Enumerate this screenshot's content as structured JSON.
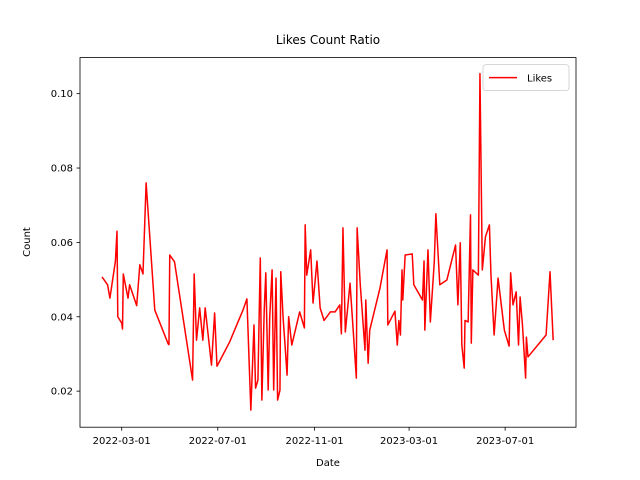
{
  "chart_data": {
    "type": "line",
    "title": "Likes Count Ratio",
    "x_label": "Date",
    "y_label": "Count",
    "x": [
      "2022-02-04",
      "2022-02-11",
      "2022-02-14",
      "2022-02-21",
      "2022-02-23",
      "2022-02-24",
      "2022-03-01",
      "2022-03-02",
      "2022-03-03",
      "2022-03-09",
      "2022-03-11",
      "2022-03-20",
      "2022-03-24",
      "2022-03-28",
      "2022-04-01",
      "2022-04-12",
      "2022-04-29",
      "2022-04-30",
      "2022-05-01",
      "2022-05-07",
      "2022-05-30",
      "2022-06-01",
      "2022-06-04",
      "2022-06-08",
      "2022-06-12",
      "2022-06-15",
      "2022-06-23",
      "2022-06-27",
      "2022-06-30",
      "2022-07-16",
      "2022-08-02",
      "2022-08-07",
      "2022-08-12",
      "2022-08-16",
      "2022-08-18",
      "2022-08-21",
      "2022-08-24",
      "2022-08-26",
      "2022-08-29",
      "2022-08-31",
      "2022-09-03",
      "2022-09-05",
      "2022-09-08",
      "2022-09-10",
      "2022-09-13",
      "2022-09-15",
      "2022-09-18",
      "2022-09-19",
      "2022-09-22",
      "2022-09-24",
      "2022-09-27",
      "2022-09-29",
      "2022-10-03",
      "2022-10-13",
      "2022-10-19",
      "2022-10-20",
      "2022-10-22",
      "2022-10-27",
      "2022-10-30",
      "2022-11-04",
      "2022-11-08",
      "2022-11-13",
      "2022-11-21",
      "2022-11-27",
      "2022-12-03",
      "2022-12-05",
      "2022-12-07",
      "2022-12-10",
      "2022-12-16",
      "2022-12-20",
      "2022-12-24",
      "2022-12-25",
      "2022-12-29",
      "2023-01-04",
      "2023-01-05",
      "2023-01-08",
      "2023-01-10",
      "2023-01-23",
      "2023-02-01",
      "2023-02-02",
      "2023-02-11",
      "2023-02-14",
      "2023-02-16",
      "2023-02-18",
      "2023-02-20",
      "2023-02-21",
      "2023-02-24",
      "2023-03-05",
      "2023-03-07",
      "2023-03-18",
      "2023-03-20",
      "2023-03-21",
      "2023-03-25",
      "2023-03-28",
      "2023-04-02",
      "2023-04-04",
      "2023-04-09",
      "2023-04-18",
      "2023-04-29",
      "2023-05-02",
      "2023-05-05",
      "2023-05-07",
      "2023-05-10",
      "2023-05-11",
      "2023-05-15",
      "2023-05-18",
      "2023-05-19",
      "2023-05-21",
      "2023-05-28",
      "2023-05-30",
      "2023-06-02",
      "2023-06-06",
      "2023-06-11",
      "2023-06-13",
      "2023-06-17",
      "2023-06-22",
      "2023-06-30",
      "2023-07-06",
      "2023-07-08",
      "2023-07-11",
      "2023-07-15",
      "2023-07-18",
      "2023-07-20",
      "2023-07-23",
      "2023-07-27",
      "2023-07-28",
      "2023-07-30",
      "2023-08-22",
      "2023-08-27",
      "2023-08-31"
    ],
    "series": [
      {
        "name": "Likes",
        "color": "red",
        "values": [
          0.0507,
          0.0486,
          0.045,
          0.055,
          0.063,
          0.04,
          0.0383,
          0.0367,
          0.0515,
          0.045,
          0.0486,
          0.043,
          0.054,
          0.0515,
          0.076,
          0.0418,
          0.0327,
          0.0325,
          0.0566,
          0.0548,
          0.023,
          0.0515,
          0.0337,
          0.0424,
          0.0337,
          0.0424,
          0.027,
          0.041,
          0.0267,
          0.0332,
          0.0418,
          0.0448,
          0.0149,
          0.0378,
          0.0208,
          0.023,
          0.0558,
          0.0176,
          0.0418,
          0.0518,
          0.0203,
          0.04,
          0.0526,
          0.0203,
          0.0504,
          0.0176,
          0.0203,
          0.0521,
          0.0397,
          0.0337,
          0.0243,
          0.04,
          0.0324,
          0.0413,
          0.037,
          0.0647,
          0.0512,
          0.058,
          0.0437,
          0.055,
          0.0424,
          0.039,
          0.0413,
          0.0413,
          0.0432,
          0.0354,
          0.0639,
          0.0359,
          0.049,
          0.0364,
          0.0235,
          0.0639,
          0.0486,
          0.031,
          0.0445,
          0.0275,
          0.0364,
          0.0477,
          0.058,
          0.0378,
          0.0415,
          0.0324,
          0.039,
          0.0351,
          0.0526,
          0.0445,
          0.0566,
          0.0569,
          0.0486,
          0.0445,
          0.055,
          0.0364,
          0.058,
          0.0386,
          0.0548,
          0.0677,
          0.0486,
          0.0499,
          0.0593,
          0.0432,
          0.0599,
          0.0324,
          0.0262,
          0.039,
          0.0386,
          0.0674,
          0.0329,
          0.0526,
          0.0512,
          0.1054,
          0.0526,
          0.0615,
          0.0647,
          0.0512,
          0.0351,
          0.0504,
          0.0364,
          0.0321,
          0.0518,
          0.0432,
          0.0467,
          0.0324,
          0.0453,
          0.0378,
          0.0235,
          0.0345,
          0.0292,
          0.0351,
          0.0521,
          0.0337
        ]
      }
    ],
    "xlim": [
      "2022-01-07",
      "2023-09-29"
    ],
    "xticks": [
      "2022-03-01",
      "2022-07-01",
      "2022-11-01",
      "2023-03-01",
      "2023-07-01"
    ],
    "ylim": [
      0.0103,
      0.1097
    ],
    "yticks": [
      0.02,
      0.04,
      0.06,
      0.08,
      {
        "value": 0.1,
        "label": "0.10"
      }
    ],
    "legend": "upper right"
  }
}
